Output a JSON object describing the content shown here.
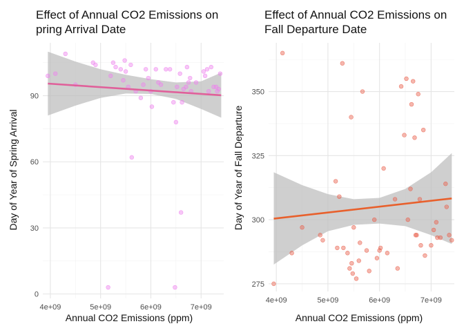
{
  "chart_data": [
    {
      "type": "scatter",
      "title_lines": [
        "Effect of Annual CO2 Emissions on",
        "pring Arrival Date"
      ],
      "xlabel": "Annual CO2 Emissions (ppm)",
      "ylabel": "Day of Year of Spring Arrival",
      "xlim": [
        3850000000.0,
        7450000000.0
      ],
      "ylim": [
        -2,
        114
      ],
      "x_ticks": [
        4000000000.0,
        5000000000.0,
        6000000000.0,
        7000000000.0
      ],
      "x_tick_labels": [
        "4e+09",
        "5e+09",
        "6e+09",
        "7e+09"
      ],
      "y_ticks": [
        0,
        30,
        60,
        90
      ],
      "y_tick_labels": [
        "0",
        "30",
        "60",
        "90"
      ],
      "grid": true,
      "point_color": "#ee82ee",
      "line_color": "#e0609a",
      "band_color": "#bdbdbd",
      "points": [
        [
          3950000000.0,
          99
        ],
        [
          4100000000.0,
          100
        ],
        [
          4300000000.0,
          109
        ],
        [
          4500000000.0,
          95
        ],
        [
          4850000000.0,
          105
        ],
        [
          4900000000.0,
          104
        ],
        [
          5150000000.0,
          3
        ],
        [
          5200000000.0,
          99
        ],
        [
          5250000000.0,
          105
        ],
        [
          5300000000.0,
          103
        ],
        [
          5400000000.0,
          102
        ],
        [
          5450000000.0,
          97
        ],
        [
          5480000000.0,
          106
        ],
        [
          5500000000.0,
          101
        ],
        [
          5550000000.0,
          94
        ],
        [
          5600000000.0,
          104
        ],
        [
          5620000000.0,
          62
        ],
        [
          5700000000.0,
          92
        ],
        [
          5800000000.0,
          89
        ],
        [
          5850000000.0,
          95
        ],
        [
          5900000000.0,
          102
        ],
        [
          5950000000.0,
          98
        ],
        [
          6000000000.0,
          92
        ],
        [
          6020000000.0,
          85
        ],
        [
          6100000000.0,
          102
        ],
        [
          6150000000.0,
          96
        ],
        [
          6200000000.0,
          95
        ],
        [
          6300000000.0,
          102
        ],
        [
          6380000000.0,
          102
        ],
        [
          6450000000.0,
          87
        ],
        [
          6480000000.0,
          3
        ],
        [
          6500000000.0,
          78
        ],
        [
          6520000000.0,
          94
        ],
        [
          6580000000.0,
          100
        ],
        [
          6600000000.0,
          37
        ],
        [
          6620000000.0,
          87
        ],
        [
          6650000000.0,
          93
        ],
        [
          6700000000.0,
          94
        ],
        [
          6720000000.0,
          103
        ],
        [
          6750000000.0,
          96
        ],
        [
          6780000000.0,
          98
        ],
        [
          6800000000.0,
          92
        ],
        [
          6900000000.0,
          96
        ],
        [
          7050000000.0,
          101
        ],
        [
          7080000000.0,
          99
        ],
        [
          7120000000.0,
          102
        ],
        [
          7150000000.0,
          92
        ],
        [
          7200000000.0,
          103
        ],
        [
          7250000000.0,
          94
        ],
        [
          7300000000.0,
          94
        ],
        [
          7320000000.0,
          92
        ],
        [
          7350000000.0,
          93
        ],
        [
          7380000000.0,
          100
        ]
      ],
      "fit": {
        "x": [
          3950000000.0,
          7400000000.0
        ],
        "y": [
          95.5,
          90.2
        ]
      },
      "band": {
        "x": [
          3950000000.0,
          4500000000.0,
          5000000000.0,
          5500000000.0,
          6000000000.0,
          6500000000.0,
          7000000000.0,
          7400000000.0
        ],
        "lower": [
          81,
          85.5,
          89,
          91,
          90.8,
          88.5,
          84,
          80
        ],
        "upper": [
          110,
          105.5,
          102,
          99.5,
          97.5,
          96,
          96.5,
          100.5
        ]
      }
    },
    {
      "type": "scatter",
      "title_lines": [
        "Effect of Annual CO2 Emissions on",
        "Fall Departure Date"
      ],
      "xlabel": "Annual CO2 Emissions (ppm)",
      "ylabel": "Day of Year of Fall Departure",
      "xlim": [
        3850000000.0,
        7450000000.0
      ],
      "ylim": [
        272,
        369
      ],
      "x_ticks": [
        4000000000.0,
        5000000000.0,
        6000000000.0,
        7000000000.0
      ],
      "x_tick_labels": [
        "4e+09",
        "5e+09",
        "6e+09",
        "7e+09"
      ],
      "y_ticks": [
        275,
        300,
        325,
        350
      ],
      "y_tick_labels": [
        "275",
        "300",
        "325",
        "350"
      ],
      "grid": true,
      "point_color": "#e8604c",
      "line_color": "#e8602c",
      "band_color": "#bdbdbd",
      "points": [
        [
          3950000000.0,
          275
        ],
        [
          4120000000.0,
          365
        ],
        [
          4300000000.0,
          287
        ],
        [
          4500000000.0,
          297
        ],
        [
          4850000000.0,
          294
        ],
        [
          4900000000.0,
          292
        ],
        [
          5150000000.0,
          315
        ],
        [
          5180000000.0,
          289
        ],
        [
          5220000000.0,
          309
        ],
        [
          5280000000.0,
          361
        ],
        [
          5300000000.0,
          289
        ],
        [
          5380000000.0,
          287
        ],
        [
          5420000000.0,
          281
        ],
        [
          5450000000.0,
          340
        ],
        [
          5460000000.0,
          283
        ],
        [
          5480000000.0,
          279
        ],
        [
          5500000000.0,
          297
        ],
        [
          5550000000.0,
          277
        ],
        [
          5600000000.0,
          284
        ],
        [
          5620000000.0,
          291
        ],
        [
          5670000000.0,
          350
        ],
        [
          5750000000.0,
          288
        ],
        [
          5800000000.0,
          280
        ],
        [
          5900000000.0,
          300
        ],
        [
          5950000000.0,
          285
        ],
        [
          6000000000.0,
          288
        ],
        [
          6020000000.0,
          289
        ],
        [
          6080000000.0,
          320
        ],
        [
          6150000000.0,
          287
        ],
        [
          6300000000.0,
          308
        ],
        [
          6350000000.0,
          281
        ],
        [
          6420000000.0,
          352
        ],
        [
          6480000000.0,
          333
        ],
        [
          6520000000.0,
          355
        ],
        [
          6550000000.0,
          300
        ],
        [
          6600000000.0,
          312
        ],
        [
          6620000000.0,
          345
        ],
        [
          6650000000.0,
          354
        ],
        [
          6680000000.0,
          332
        ],
        [
          6700000000.0,
          294
        ],
        [
          6720000000.0,
          294
        ],
        [
          6750000000.0,
          349
        ],
        [
          6780000000.0,
          308
        ],
        [
          6800000000.0,
          290
        ],
        [
          6850000000.0,
          335
        ],
        [
          6880000000.0,
          286
        ],
        [
          7000000000.0,
          290
        ],
        [
          7050000000.0,
          296
        ],
        [
          7100000000.0,
          299
        ],
        [
          7120000000.0,
          293
        ],
        [
          7180000000.0,
          293
        ],
        [
          7280000000.0,
          314
        ],
        [
          7300000000.0,
          305
        ],
        [
          7350000000.0,
          294
        ],
        [
          7400000000.0,
          292
        ]
      ],
      "fit": {
        "x": [
          3950000000.0,
          7400000000.0
        ],
        "y": [
          300.4,
          308.3
        ]
      },
      "band": {
        "x": [
          3950000000.0,
          4500000000.0,
          5000000000.0,
          5500000000.0,
          6000000000.0,
          6500000000.0,
          7000000000.0,
          7400000000.0
        ],
        "lower": [
          282.5,
          290,
          295.5,
          298,
          298.5,
          297.5,
          294,
          290.5
        ],
        "upper": [
          318.5,
          313.5,
          310,
          308,
          308.5,
          312,
          318.5,
          326
        ]
      }
    }
  ]
}
